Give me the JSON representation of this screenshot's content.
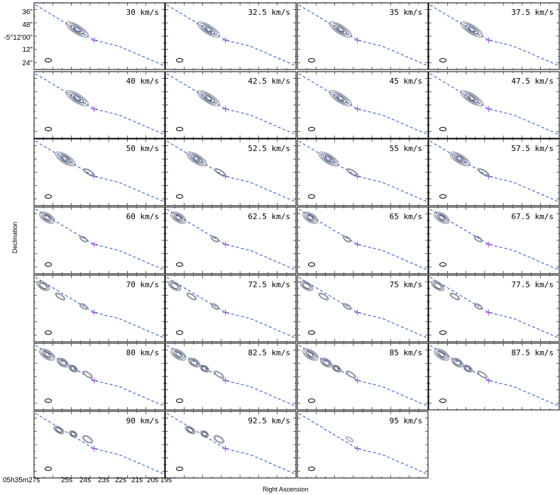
{
  "chart_data": {
    "type": "contour-channel-map",
    "xlabel": "Right Ascension",
    "ylabel": "Declination",
    "y_tick_labels": [
      "36\"",
      "48\"",
      "-5°12'00\"",
      "12\"",
      "24\""
    ],
    "x_tick_labels": [
      "05h35m27s",
      "25s",
      "24s",
      "23s",
      "22s",
      "21s",
      "20s",
      "19s"
    ],
    "velocity_unit": "km/s",
    "channels": [
      {
        "velocity": 30,
        "label": "30 km/s"
      },
      {
        "velocity": 32.5,
        "label": "32.5 km/s"
      },
      {
        "velocity": 35,
        "label": "35 km/s"
      },
      {
        "velocity": 37.5,
        "label": "37.5 km/s"
      },
      {
        "velocity": 40,
        "label": "40 km/s"
      },
      {
        "velocity": 42.5,
        "label": "42.5 km/s"
      },
      {
        "velocity": 45,
        "label": "45 km/s"
      },
      {
        "velocity": 47.5,
        "label": "47.5 km/s"
      },
      {
        "velocity": 50,
        "label": "50 km/s"
      },
      {
        "velocity": 52.5,
        "label": "52.5 km/s"
      },
      {
        "velocity": 55,
        "label": "55 km/s"
      },
      {
        "velocity": 57.5,
        "label": "57.5 km/s"
      },
      {
        "velocity": 60,
        "label": "60 km/s"
      },
      {
        "velocity": 62.5,
        "label": "62.5 km/s"
      },
      {
        "velocity": 65,
        "label": "65 km/s"
      },
      {
        "velocity": 67.5,
        "label": "67.5 km/s"
      },
      {
        "velocity": 70,
        "label": "70 km/s"
      },
      {
        "velocity": 72.5,
        "label": "72.5 km/s"
      },
      {
        "velocity": 75,
        "label": "75 km/s"
      },
      {
        "velocity": 77.5,
        "label": "77.5 km/s"
      },
      {
        "velocity": 80,
        "label": "80 km/s"
      },
      {
        "velocity": 82.5,
        "label": "82.5 km/s"
      },
      {
        "velocity": 85,
        "label": "85 km/s"
      },
      {
        "velocity": 87.5,
        "label": "87.5 km/s"
      },
      {
        "velocity": 90,
        "label": "90 km/s"
      },
      {
        "velocity": 92.5,
        "label": "92.5 km/s"
      },
      {
        "velocity": 95,
        "label": "95 km/s"
      }
    ],
    "colors": {
      "contour": "#7d8595",
      "contour_dark": "#4a5670",
      "jet_axis": "#2c5fd6",
      "source_marker": "#9b3ae0",
      "frame": "#000000"
    },
    "grid": "none",
    "layout_words": "7 rows x 4 columns of channel panels"
  }
}
